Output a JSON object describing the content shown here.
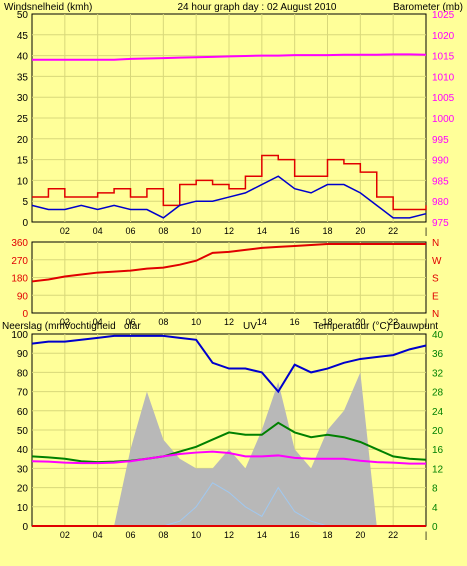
{
  "colors": {
    "background": "#ffff99",
    "plot_bg": "#ffff99",
    "grid": "#d8d87a",
    "axis": "#000000",
    "wind_gust": "#e00000",
    "wind_avg": "#0000cc",
    "barometer": "#ff00ff",
    "direction": "#e00000",
    "rain": "#e00000",
    "humidity": "#0000cc",
    "temperature": "#008000",
    "dewpoint": "#ff00ff",
    "solar": "#b8b8b8",
    "uv": "#a0c8f0",
    "title_left": "#ff0000",
    "title_right": "#ff00ff",
    "title_center": "#000000"
  },
  "header": {
    "left": "Windsnelheid (kmh)",
    "center": "24 hour graph day : 02 August 2010",
    "right": "Barometer (mb)"
  },
  "chart_data": [
    {
      "type": "line",
      "title": "24 hour graph day : 02 August 2010",
      "ylabel": "Windsnelheid (kmh)",
      "y2label": "Barometer (mb)",
      "ylim": [
        0,
        50
      ],
      "y2lim": [
        975,
        1025
      ],
      "yticks": [
        "0",
        "5",
        "10",
        "15",
        "20",
        "25",
        "30",
        "35",
        "40",
        "45",
        "50"
      ],
      "y2ticks": [
        "975",
        "980",
        "985",
        "990",
        "995",
        "1000",
        "1005",
        "1010",
        "1015",
        "1020",
        "1025"
      ],
      "xticks": [
        "02",
        "04",
        "06",
        "08",
        "10",
        "12",
        "14",
        "16",
        "18",
        "20",
        "22",
        ""
      ],
      "x_hours": [
        0,
        1,
        2,
        3,
        4,
        5,
        6,
        7,
        8,
        9,
        10,
        11,
        12,
        13,
        14,
        15,
        16,
        17,
        18,
        19,
        20,
        21,
        22,
        23,
        24
      ],
      "series": [
        {
          "name": "Windsnelheid (kmh)",
          "color": "#e00000",
          "values": [
            6,
            8,
            6,
            6,
            7,
            8,
            6,
            8,
            4,
            9,
            10,
            9,
            8,
            11,
            16,
            15,
            11,
            11,
            15,
            14,
            12,
            6,
            3,
            3,
            4
          ]
        },
        {
          "name": "",
          "color": "#0000cc",
          "values": [
            4,
            3,
            3,
            4,
            3,
            4,
            3,
            3,
            1,
            4,
            5,
            5,
            6,
            7,
            9,
            11,
            8,
            7,
            9,
            9,
            7,
            4,
            1,
            1,
            2
          ]
        },
        {
          "name": "Barometer (mb)",
          "color": "#ff00ff",
          "axis": "right",
          "values": [
            1014,
            1014,
            1014,
            1014,
            1014,
            1014,
            1014.2,
            1014.3,
            1014.4,
            1014.5,
            1014.6,
            1014.7,
            1014.8,
            1014.9,
            1015,
            1015,
            1015.1,
            1015.1,
            1015.1,
            1015.2,
            1015.2,
            1015.2,
            1015.3,
            1015.3,
            1015.2
          ]
        }
      ]
    },
    {
      "type": "line",
      "ylabel": "",
      "ylim": [
        0,
        360
      ],
      "yticks": [
        "0",
        "90",
        "180",
        "270",
        "360"
      ],
      "y2ticks": [
        "N",
        "E",
        "S",
        "W",
        "N"
      ],
      "xticks": [
        "02",
        "04",
        "06",
        "08",
        "10",
        "12",
        "14",
        "16",
        "18",
        "20",
        "22",
        ""
      ],
      "x_hours": [
        0,
        1,
        2,
        3,
        4,
        5,
        6,
        7,
        8,
        9,
        10,
        11,
        12,
        13,
        14,
        15,
        16,
        17,
        18,
        19,
        20,
        21,
        22,
        23,
        24
      ],
      "series": [
        {
          "name": "",
          "color": "#e00000",
          "values": [
            160,
            170,
            185,
            195,
            205,
            210,
            215,
            225,
            230,
            245,
            265,
            305,
            310,
            320,
            330,
            335,
            340,
            345,
            350,
            350,
            350,
            350,
            350,
            350,
            350
          ]
        }
      ]
    },
    {
      "type": "line",
      "ylabel": "Neerslag (mm)",
      "ylim": [
        0,
        100
      ],
      "y2lim": [
        0,
        40
      ],
      "yticks": [
        "0",
        "10",
        "20",
        "30",
        "40",
        "50",
        "60",
        "70",
        "80",
        "90",
        "100"
      ],
      "y2ticks": [
        "0",
        "4",
        "8",
        "12",
        "16",
        "20",
        "24",
        "28",
        "32",
        "36",
        "40"
      ],
      "xticks": [
        "02",
        "04",
        "06",
        "08",
        "10",
        "12",
        "14",
        "16",
        "18",
        "20",
        "22",
        ""
      ],
      "legend": [
        "Neerslag (mm)",
        "Vochtigheid",
        "Solar",
        "UV",
        "Temperatuur (°C)",
        "Dauwpunt"
      ],
      "x_hours": [
        0,
        1,
        2,
        3,
        4,
        5,
        6,
        7,
        8,
        9,
        10,
        11,
        12,
        13,
        14,
        15,
        16,
        17,
        18,
        19,
        20,
        21,
        22,
        23,
        24
      ],
      "series": [
        {
          "name": "Neerslag (mm)",
          "color": "#e00000",
          "values": [
            0,
            0,
            0,
            0,
            0,
            0,
            0,
            0,
            0,
            0,
            0,
            0,
            0,
            0,
            0,
            0,
            0,
            0,
            0,
            0,
            0,
            0,
            0,
            0,
            0
          ]
        },
        {
          "name": "Vochtigheid",
          "color": "#0000cc",
          "values": [
            95,
            96,
            96,
            97,
            98,
            99,
            99,
            99,
            99,
            98,
            97,
            85,
            82,
            82,
            80,
            70,
            84,
            80,
            82,
            85,
            87,
            88,
            89,
            92,
            94
          ]
        },
        {
          "name": "Temperatuur (°C)",
          "color": "#008000",
          "axis": "right",
          "values": [
            14.5,
            14.3,
            14,
            13.5,
            13.3,
            13.4,
            13.6,
            14,
            14.5,
            15.5,
            16.5,
            18,
            19.5,
            19,
            19,
            21.5,
            19.5,
            18.5,
            19,
            18.5,
            17.5,
            16,
            14.5,
            14,
            13.8
          ]
        },
        {
          "name": "Dauwpunt",
          "color": "#ff00ff",
          "axis": "right",
          "values": [
            13.5,
            13.4,
            13.2,
            13.1,
            13.1,
            13.2,
            13.5,
            14,
            14.5,
            15,
            15.3,
            15.5,
            15.2,
            14.5,
            14.5,
            14.7,
            14.2,
            14,
            14,
            14,
            13.6,
            13.3,
            13.2,
            13,
            13
          ]
        },
        {
          "name": "Solar",
          "color": "#b8b8b8",
          "axis": "right",
          "values": [
            0,
            0,
            0,
            0,
            0,
            0,
            16,
            28,
            18,
            14,
            12,
            12,
            16,
            12,
            20,
            30,
            16,
            12,
            20,
            24,
            32,
            0,
            0,
            0,
            0
          ]
        },
        {
          "name": "UV",
          "color": "#a0c8f0",
          "axis": "right",
          "values": [
            0,
            0,
            0,
            0,
            0,
            0,
            0,
            0,
            0,
            1,
            4,
            9,
            7,
            4,
            2,
            8,
            3,
            1,
            0,
            0,
            0,
            0,
            0,
            0,
            0
          ]
        }
      ]
    }
  ],
  "panel3": {
    "left_label": "Neerslag (mm",
    "left_label2": "Vochtigheid",
    "solar_label": "olar",
    "uv_label": "UV",
    "right_label": "Temperatuur (°C)",
    "right_label2": "Dauwpunt"
  }
}
